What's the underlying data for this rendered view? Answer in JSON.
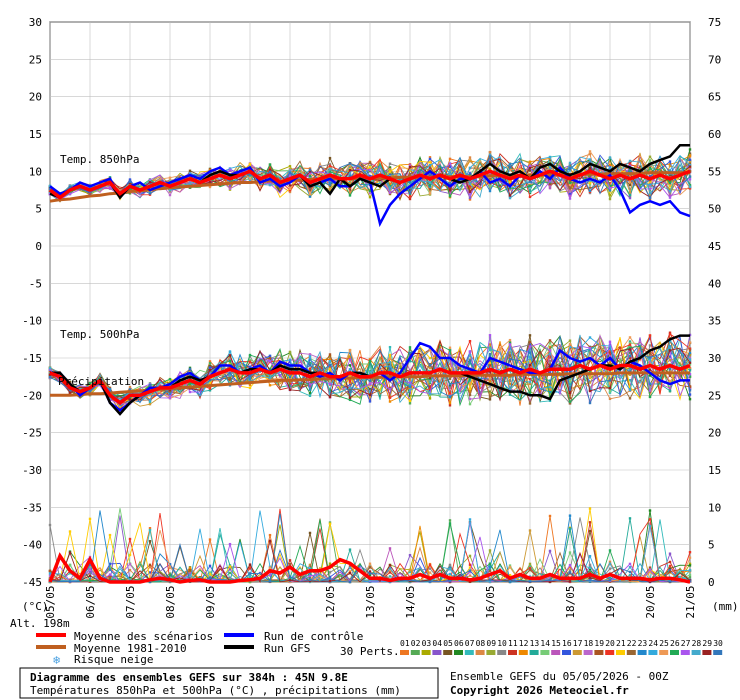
{
  "chart_data": {
    "type": "line",
    "title": "Diagramme des ensembles GEFS sur 384h : 45N 9.8E",
    "subtitle": "Températures 850hPa et 500hPa (°C) , précipitations (mm)",
    "altitude_label": "Alt. 198m",
    "y_left_label": "(°C)",
    "y_right_label": "(mm)",
    "y_left_ticks": [
      "30",
      "25",
      "20",
      "15",
      "10",
      "5",
      "0",
      "-5",
      "-10",
      "-15",
      "-20",
      "-25",
      "-30",
      "-35",
      "-40",
      "-45"
    ],
    "y_left_values": [
      30,
      25,
      20,
      15,
      10,
      5,
      0,
      -5,
      -10,
      -15,
      -20,
      -25,
      -30,
      -35,
      -40,
      -45
    ],
    "y_right_ticks_upper": [
      "75",
      "70",
      "65",
      "60",
      "55",
      "50",
      "45"
    ],
    "y_right_values_upper": [
      75,
      70,
      65,
      60,
      55,
      50,
      45
    ],
    "y_right_ticks_lower": [
      "40",
      "35",
      "30",
      "25",
      "20",
      "15",
      "10",
      "5",
      "0"
    ],
    "y_right_values_lower": [
      40,
      35,
      30,
      25,
      20,
      15,
      10,
      5,
      0
    ],
    "ylim": [
      -45,
      30
    ],
    "x_ticks": [
      "05/05",
      "06/05",
      "07/05",
      "08/05",
      "09/05",
      "10/05",
      "11/05",
      "12/05",
      "13/05",
      "14/05",
      "15/05",
      "16/05",
      "17/05",
      "18/05",
      "19/05",
      "20/05",
      "21/05"
    ],
    "annotations": {
      "temp850": "Temp. 850hPa",
      "temp500": "Temp. 500hPa",
      "precip": "Précipitation"
    },
    "grid": true,
    "series": [
      {
        "name": "Moyenne des scénarios",
        "color": "#ff0000",
        "t850": [
          7.5,
          6.5,
          7.5,
          8.0,
          7.5,
          8.0,
          8.5,
          7.0,
          8.0,
          7.5,
          8.0,
          8.5,
          8.0,
          8.5,
          9.0,
          8.5,
          9.0,
          9.5,
          9.0,
          9.5,
          10.0,
          9.0,
          9.5,
          8.5,
          9.0,
          9.5,
          8.5,
          9.0,
          9.5,
          9.0,
          9.0,
          9.5,
          9.0,
          9.5,
          9.0,
          8.5,
          9.0,
          9.5,
          9.0,
          9.5,
          9.0,
          9.5,
          9.0,
          9.5,
          10.0,
          9.5,
          9.0,
          9.5,
          9.0,
          9.5,
          10.0,
          9.5,
          9.0,
          9.5,
          10.0,
          9.5,
          9.0,
          9.5,
          9.0,
          9.5,
          9.0,
          9.5,
          9.0,
          9.5,
          10.0
        ],
        "t500": [
          -17,
          -17.5,
          -19,
          -19.5,
          -19,
          -18,
          -20,
          -21,
          -20,
          -20,
          -19.5,
          -19,
          -19,
          -18.5,
          -18,
          -18.5,
          -17.5,
          -17,
          -16.5,
          -17,
          -17,
          -16.5,
          -17,
          -16.5,
          -17,
          -17,
          -17.5,
          -17,
          -17.5,
          -17.5,
          -17,
          -17.5,
          -17.5,
          -17,
          -17,
          -17.5,
          -17,
          -17,
          -17,
          -16.5,
          -17,
          -17,
          -17,
          -17,
          -16.5,
          -17,
          -16.5,
          -17,
          -16.5,
          -17,
          -16.5,
          -16.5,
          -16.5,
          -16,
          -16.5,
          -16,
          -16.5,
          -16,
          -16,
          -16.5,
          -16,
          -16.5,
          -16,
          -16.5,
          -16
        ],
        "precip": [
          0,
          3.5,
          1.5,
          0.5,
          3,
          0.5,
          0,
          0,
          0,
          0,
          0.3,
          0.5,
          0.3,
          0,
          0.2,
          0.3,
          0,
          0,
          0,
          0.2,
          0.3,
          0.5,
          1.5,
          1.2,
          2,
          1.0,
          1.5,
          1.5,
          2.0,
          3.0,
          2.5,
          1.5,
          0.5,
          0.5,
          0.2,
          0.5,
          0.5,
          1.0,
          0.5,
          1.0,
          0.5,
          0.5,
          0.3,
          0.5,
          1.0,
          1.5,
          0.5,
          1.0,
          0.5,
          0.5,
          1.0,
          0.5,
          0.5,
          0.5,
          1.0,
          0.5,
          1.0,
          0.5,
          0.5,
          0.5,
          0.3,
          0.5,
          0.5,
          0.3,
          0
        ]
      },
      {
        "name": "Moyenne 1981-2010",
        "color": "#bf5f1f",
        "t850": [
          6.0,
          6.2,
          6.3,
          6.5,
          6.7,
          6.8,
          7.0,
          7.1,
          7.3,
          7.4,
          7.5,
          7.7,
          7.8,
          7.9,
          8.0,
          8.1,
          8.2,
          8.3,
          8.4,
          8.5,
          8.5,
          8.6,
          8.7,
          8.7,
          8.8,
          8.8,
          8.9,
          8.9,
          9.0,
          9.0,
          9.0,
          9.1,
          9.1,
          9.1,
          9.1,
          9.2,
          9.2,
          9.2,
          9.2,
          9.3,
          9.3,
          9.3,
          9.3,
          9.3,
          9.4,
          9.4,
          9.4,
          9.4,
          9.5,
          9.5,
          9.5,
          9.5,
          9.6,
          9.6,
          9.6,
          9.6,
          9.7,
          9.7,
          9.7,
          9.7,
          9.8,
          9.8,
          9.8,
          9.8,
          9.8
        ],
        "t500": [
          -20.0,
          -20.0,
          -20.0,
          -19.9,
          -19.8,
          -19.8,
          -19.7,
          -19.6,
          -19.5,
          -19.4,
          -19.3,
          -19.2,
          -19.1,
          -19.0,
          -18.9,
          -18.8,
          -18.7,
          -18.6,
          -18.5,
          -18.4,
          -18.3,
          -18.2,
          -18.1,
          -18.0,
          -18.0,
          -17.9,
          -17.9,
          -17.8,
          -17.8,
          -17.7,
          -17.7,
          -17.6,
          -17.6,
          -17.6,
          -17.5,
          -17.5,
          -17.5,
          -17.5,
          -17.4,
          -17.4,
          -17.4,
          -17.4,
          -17.3,
          -17.3,
          -17.3,
          -17.3,
          -17.3,
          -17.2,
          -17.2,
          -17.2,
          -17.2,
          -17.2,
          -17.1,
          -17.1,
          -17.1,
          -17.1,
          -17.1,
          -17.0,
          -17.0,
          -17.0,
          -17.0,
          -17.0,
          -17.0,
          -17.0,
          -17.0
        ]
      },
      {
        "name": "Run de contrôle",
        "color": "#0000ff",
        "t850": [
          8,
          7,
          7.5,
          8.5,
          8,
          8.5,
          9,
          6.5,
          8,
          8.5,
          7.5,
          8,
          8.5,
          9,
          9.5,
          9,
          10,
          10.5,
          9.5,
          10,
          10.5,
          8.5,
          9,
          8,
          8.5,
          9.5,
          8,
          8.5,
          9,
          8,
          8,
          9,
          8.5,
          3,
          5.5,
          7,
          8,
          9,
          10,
          9,
          8,
          9,
          9,
          10,
          8.5,
          9,
          8,
          9.5,
          9,
          10,
          9,
          10.5,
          9,
          8.5,
          9,
          8.5,
          9.5,
          7.5,
          4.5,
          5.5,
          6,
          5.5,
          6,
          4.5,
          4
        ],
        "t500": [
          -17,
          -17,
          -18.5,
          -20,
          -19,
          -18,
          -21,
          -22,
          -21,
          -20,
          -19,
          -19,
          -18.5,
          -17.5,
          -17,
          -18,
          -17.5,
          -16,
          -16,
          -17,
          -16.5,
          -16,
          -17,
          -15.5,
          -16,
          -16,
          -17,
          -17.5,
          -17,
          -18,
          -17,
          -17,
          -17.5,
          -17,
          -18,
          -17,
          -15,
          -13,
          -13.5,
          -15,
          -15,
          -16,
          -16.5,
          -17,
          -15,
          -15.5,
          -16,
          -16.5,
          -17,
          -17,
          -16.5,
          -14,
          -15,
          -15.5,
          -15,
          -16,
          -15,
          -16.5,
          -15.5,
          -16,
          -17,
          -18,
          -18.5,
          -18,
          -18
        ]
      },
      {
        "name": "Run GFS",
        "color": "#000000",
        "t850": [
          7,
          6.5,
          7.5,
          8,
          7.5,
          8,
          8.5,
          6.5,
          8,
          7.5,
          8,
          8.5,
          8,
          8.5,
          9,
          8.5,
          9.5,
          10,
          9.5,
          9.5,
          10,
          9,
          9.5,
          8.5,
          9,
          9.5,
          8,
          8.5,
          7,
          9,
          8,
          9,
          8.5,
          8,
          9,
          8.5,
          9,
          9.5,
          9,
          9.5,
          9,
          8.5,
          9,
          10,
          11,
          10,
          9.5,
          10,
          9,
          10.5,
          11,
          10,
          9.5,
          10,
          11,
          10.5,
          10,
          11,
          10.5,
          10,
          11,
          11.5,
          12,
          13.5,
          13.5
        ],
        "t500": [
          -17,
          -17,
          -18.5,
          -19.5,
          -19,
          -18,
          -21,
          -22.5,
          -21,
          -20,
          -19.5,
          -19,
          -19,
          -18,
          -17.5,
          -18,
          -17.5,
          -17,
          -16.5,
          -17,
          -16.5,
          -16.5,
          -17,
          -16,
          -16.5,
          -16.5,
          -17,
          -17,
          -17.5,
          -17.5,
          -17,
          -17,
          -17.5,
          -17,
          -17,
          -17.5,
          -17,
          -17,
          -17,
          -16.5,
          -17,
          -17,
          -17.5,
          -18,
          -18.5,
          -19,
          -19.5,
          -19.5,
          -20,
          -20,
          -20.5,
          -18,
          -17.5,
          -17,
          -16.5,
          -16,
          -16,
          -16.5,
          -15.5,
          -15,
          -14,
          -13.5,
          -12.5,
          -12,
          -12
        ]
      }
    ],
    "perturbation_colors": [
      "#ee7722",
      "#55aa55",
      "#aaaa00",
      "#8855cc",
      "#775522",
      "#228822",
      "#33bbbb",
      "#dd8844",
      "#99aa33",
      "#888888",
      "#cc3322",
      "#ee8800",
      "#22aa99",
      "#77cc77",
      "#bb55bb",
      "#3355dd",
      "#cc9933",
      "#bb66cc",
      "#aa5522",
      "#ee3322",
      "#ffcc00",
      "#996633",
      "#2288cc",
      "#33aadd",
      "#ee9955",
      "#22aa55",
      "#aa55ee",
      "#44aacc",
      "#992222",
      "#3377bb"
    ]
  },
  "legend": {
    "items": [
      {
        "label": "Moyenne des scénarios",
        "color": "#ff0000"
      },
      {
        "label": "Moyenne 1981-2010",
        "color": "#bf5f1f"
      },
      {
        "label": "Run de contrôle",
        "color": "#0000ff"
      },
      {
        "label": "Run GFS",
        "color": "#000000"
      }
    ],
    "snow_label": "Risque neige",
    "perts_label": "30 Perts.",
    "pert_numbers": [
      "01",
      "02",
      "03",
      "04",
      "05",
      "06",
      "07",
      "08",
      "09",
      "10",
      "11",
      "12",
      "13",
      "14",
      "15",
      "16",
      "17",
      "18",
      "19",
      "20",
      "21",
      "22",
      "23",
      "24",
      "25",
      "26",
      "27",
      "28",
      "29",
      "30"
    ]
  },
  "footer": {
    "ensemble_info": "Ensemble GEFS du 05/05/2026 - 00Z",
    "copyright": "Copyright 2026 Meteociel.fr"
  }
}
